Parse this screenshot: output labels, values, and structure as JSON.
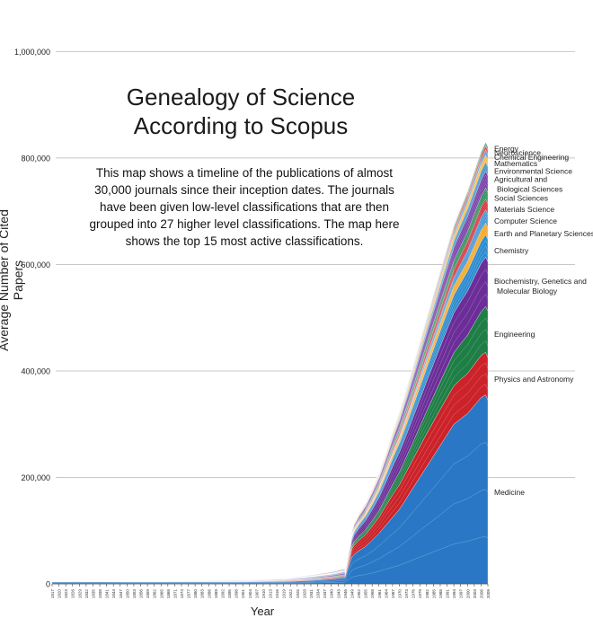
{
  "header": {
    "title_line1": "Genealogy of Science",
    "title_line2": "According to Scopus",
    "description": "This map shows a timeline of the publications of almost 30,000 journals since their inception dates. The journals have been given low-level classifications that are then grouped into 27 higher level classifications. The map here shows the top 15 most active classifications."
  },
  "chart_data": {
    "type": "area",
    "stacked": true,
    "xlabel": "Year",
    "ylabel": "Average Number of Cited Papers",
    "ylim": [
      0,
      1080000
    ],
    "yticks": [
      0,
      200000,
      400000,
      600000,
      800000,
      1000000
    ],
    "ytick_labels": [
      "0",
      "200,000",
      "400,000",
      "600,000",
      "800,000",
      "1,000,000"
    ],
    "xtick_labels": [
      "1817",
      "1820",
      "1823",
      "1826",
      "1829",
      "1832",
      "1835",
      "1838",
      "1841",
      "1844",
      "1847",
      "1850",
      "1853",
      "1856",
      "1859",
      "1862",
      "1865",
      "1868",
      "1871",
      "1874",
      "1877",
      "1880",
      "1883",
      "1886",
      "1889",
      "1892",
      "1895",
      "1898",
      "1901",
      "1904",
      "1907",
      "1910",
      "1913",
      "1916",
      "1919",
      "1922",
      "1925",
      "1928",
      "1931",
      "1934",
      "1937",
      "1940",
      "1943",
      "1946",
      "1949",
      "1952",
      "1955",
      "1958",
      "1961",
      "1964",
      "1967",
      "1970",
      "1973",
      "1976",
      "1979",
      "1982",
      "1985",
      "1988",
      "1991",
      "1994",
      "1997",
      "2000",
      "2003",
      "2006",
      "2009"
    ],
    "grid": "horizontal",
    "legend_placement": "right, labels aligned with series",
    "x": [
      "1817",
      "1820",
      "1826",
      "1850",
      "1870",
      "1900",
      "1920",
      "1930",
      "1940",
      "1946",
      "1949",
      "1950",
      "1952",
      "1955",
      "1958",
      "1961",
      "1964",
      "1967",
      "1970",
      "1973",
      "1976",
      "1979",
      "1982",
      "1985",
      "1988",
      "1991",
      "1994",
      "1997",
      "2000",
      "2003",
      "2006",
      "2008",
      "2009"
    ],
    "series": [
      {
        "name": "Medicine",
        "color": "#2a78c5",
        "values": [
          4000,
          4000,
          4000,
          3500,
          3500,
          3500,
          4500,
          6000,
          9000,
          12000,
          50000,
          55000,
          62000,
          70000,
          82000,
          95000,
          110000,
          125000,
          140000,
          160000,
          180000,
          200000,
          220000,
          240000,
          260000,
          280000,
          300000,
          310000,
          320000,
          335000,
          350000,
          355000,
          345000
        ]
      },
      {
        "name": "Physics and Astronomy",
        "color": "#cc2229",
        "values": [
          100,
          300,
          500,
          600,
          800,
          1000,
          1500,
          2000,
          2500,
          3000,
          15000,
          17000,
          19000,
          22000,
          26000,
          30000,
          36000,
          42000,
          46000,
          50000,
          54000,
          58000,
          62000,
          65000,
          68000,
          70000,
          72000,
          74000,
          75000,
          77000,
          79000,
          80000,
          80000
        ]
      },
      {
        "name": "Engineering",
        "color": "#1e7e45",
        "values": [
          100,
          100,
          200,
          300,
          400,
          600,
          900,
          1300,
          1800,
          2200,
          6000,
          7000,
          8000,
          9500,
          11000,
          13000,
          16000,
          20000,
          24000,
          28000,
          32000,
          37000,
          42000,
          47000,
          52000,
          57000,
          62000,
          67000,
          72000,
          77000,
          82000,
          86000,
          88000
        ]
      },
      {
        "name": "Biochemistry, Genetics and Molecular Biology",
        "color": "#6b2e98",
        "values": [
          100,
          200,
          300,
          500,
          700,
          900,
          1300,
          1800,
          2500,
          3000,
          10000,
          12000,
          14000,
          17000,
          20000,
          24000,
          28000,
          33000,
          37000,
          41000,
          46000,
          51000,
          56000,
          61000,
          66000,
          71000,
          75000,
          79000,
          83000,
          87000,
          91000,
          93000,
          92000
        ]
      },
      {
        "name": "Chemistry",
        "color": "#2c8ccf",
        "values": [
          100,
          200,
          300,
          400,
          600,
          800,
          1100,
          1500,
          2000,
          2500,
          5000,
          6000,
          7000,
          8000,
          9500,
          11000,
          13000,
          15000,
          17000,
          19000,
          21000,
          23000,
          25000,
          27000,
          29000,
          31000,
          33000,
          35000,
          37000,
          39000,
          41000,
          42000,
          42000
        ]
      },
      {
        "name": "Earth and Planetary Sciences",
        "color": "#f5a623",
        "values": [
          50,
          100,
          200,
          300,
          400,
          500,
          700,
          900,
          1200,
          1500,
          3000,
          3500,
          4000,
          4500,
          5200,
          6000,
          7000,
          8000,
          9000,
          10000,
          11000,
          12000,
          13000,
          14000,
          15000,
          16000,
          17000,
          18000,
          19000,
          20000,
          21000,
          22000,
          22000
        ]
      },
      {
        "name": "Computer Science",
        "color": "#4596d6",
        "values": [
          0,
          0,
          0,
          0,
          0,
          0,
          0,
          0,
          0,
          0,
          0,
          0,
          300,
          600,
          1000,
          1500,
          2000,
          3000,
          4000,
          5000,
          6000,
          7500,
          9000,
          10500,
          12000,
          14000,
          16000,
          18000,
          20000,
          22000,
          24000,
          25000,
          25000
        ]
      },
      {
        "name": "Materials Science",
        "color": "#d2303a",
        "values": [
          0,
          0,
          0,
          0,
          50,
          100,
          200,
          300,
          500,
          700,
          1500,
          2000,
          2500,
          3000,
          3700,
          4500,
          5500,
          6500,
          7500,
          8500,
          9500,
          10500,
          11500,
          12500,
          13500,
          14500,
          15500,
          16500,
          17500,
          18500,
          19500,
          20000,
          20000
        ]
      },
      {
        "name": "Social Sciences",
        "color": "#2e8b57",
        "values": [
          50,
          100,
          150,
          200,
          300,
          400,
          600,
          800,
          1000,
          1200,
          2500,
          3000,
          3500,
          4000,
          4800,
          5500,
          6500,
          7500,
          8500,
          9500,
          10500,
          11500,
          12500,
          13500,
          14500,
          15500,
          16500,
          17500,
          18500,
          19500,
          20500,
          21000,
          21000
        ]
      },
      {
        "name": "Agricultural and Biological Sciences",
        "color": "#7a3fa8",
        "values": [
          100,
          150,
          200,
          300,
          500,
          700,
          900,
          1200,
          1600,
          2000,
          4000,
          4500,
          5000,
          6000,
          7000,
          8000,
          9500,
          11000,
          12500,
          14000,
          15500,
          17000,
          18500,
          20000,
          21500,
          23000,
          24500,
          26000,
          27500,
          29000,
          30500,
          31500,
          31500
        ]
      },
      {
        "name": "Environmental Science",
        "color": "#3a8fc4",
        "values": [
          0,
          0,
          0,
          0,
          0,
          0,
          100,
          200,
          300,
          500,
          1000,
          1200,
          1500,
          1800,
          2200,
          2700,
          3300,
          4000,
          4800,
          5600,
          6500,
          7500,
          8500,
          9500,
          10500,
          11500,
          12500,
          13500,
          14500,
          15500,
          16500,
          17000,
          17000
        ]
      },
      {
        "name": "Mathematics",
        "color": "#f7b133",
        "values": [
          50,
          100,
          150,
          200,
          250,
          300,
          450,
          600,
          800,
          1000,
          2000,
          2300,
          2600,
          3000,
          3500,
          4000,
          4600,
          5200,
          5800,
          6400,
          7000,
          7600,
          8200,
          8800,
          9400,
          10000,
          10600,
          11200,
          11800,
          12400,
          13000,
          13300,
          13300
        ]
      },
      {
        "name": "Chemical Engineering",
        "color": "#3b84c8",
        "values": [
          0,
          0,
          0,
          0,
          0,
          50,
          100,
          200,
          300,
          400,
          900,
          1000,
          1200,
          1400,
          1700,
          2000,
          2400,
          2800,
          3200,
          3600,
          4000,
          4500,
          5000,
          5500,
          6000,
          6500,
          7000,
          7500,
          8000,
          8500,
          9000,
          9300,
          9300
        ]
      },
      {
        "name": "Neuroscience",
        "color": "#c9202a",
        "values": [
          0,
          0,
          0,
          0,
          0,
          0,
          0,
          0,
          100,
          200,
          500,
          600,
          700,
          900,
          1100,
          1400,
          1700,
          2000,
          2400,
          2800,
          3200,
          3600,
          4000,
          4500,
          5000,
          5500,
          6000,
          6500,
          7000,
          7500,
          8000,
          8300,
          8300
        ]
      },
      {
        "name": "Energy",
        "color": "#1c7a3e",
        "values": [
          0,
          0,
          0,
          0,
          0,
          0,
          0,
          0,
          0,
          0,
          0,
          0,
          100,
          200,
          400,
          600,
          800,
          1000,
          1300,
          1600,
          1900,
          2200,
          2500,
          2900,
          3300,
          3700,
          4100,
          4500,
          4900,
          5300,
          5700,
          6000,
          6000
        ]
      }
    ],
    "legend_labels": [
      {
        "series": "Energy",
        "lines": [
          "Energy"
        ]
      },
      {
        "series": "Neuroscience",
        "lines": [
          "Neuroscience"
        ]
      },
      {
        "series": "Chemical Engineering",
        "lines": [
          "Chemical Engineering"
        ]
      },
      {
        "series": "Mathematics",
        "lines": [
          "Mathematics"
        ]
      },
      {
        "series": "Environmental Science",
        "lines": [
          "Environmental Science"
        ]
      },
      {
        "series": "Agricultural and Biological Sciences",
        "lines": [
          "Agricultural and",
          "Biological Sciences"
        ]
      },
      {
        "series": "Social Sciences",
        "lines": [
          "Social Sciences"
        ]
      },
      {
        "series": "Materials Science",
        "lines": [
          "Materials Science"
        ]
      },
      {
        "series": "Computer Science",
        "lines": [
          "Computer Science"
        ]
      },
      {
        "series": "Earth and Planetary Sciences",
        "lines": [
          "Earth and Planetary Sciences"
        ]
      },
      {
        "series": "Chemistry",
        "lines": [
          "Chemistry"
        ]
      },
      {
        "series": "Biochemistry, Genetics and Molecular Biology",
        "lines": [
          "Biochemistry, Genetics and",
          "Molecular Biology"
        ]
      },
      {
        "series": "Engineering",
        "lines": [
          "Engineering"
        ]
      },
      {
        "series": "Physics and Astronomy",
        "lines": [
          "Physics and Astronomy"
        ]
      },
      {
        "series": "Medicine",
        "lines": [
          "Medicine"
        ]
      }
    ]
  }
}
